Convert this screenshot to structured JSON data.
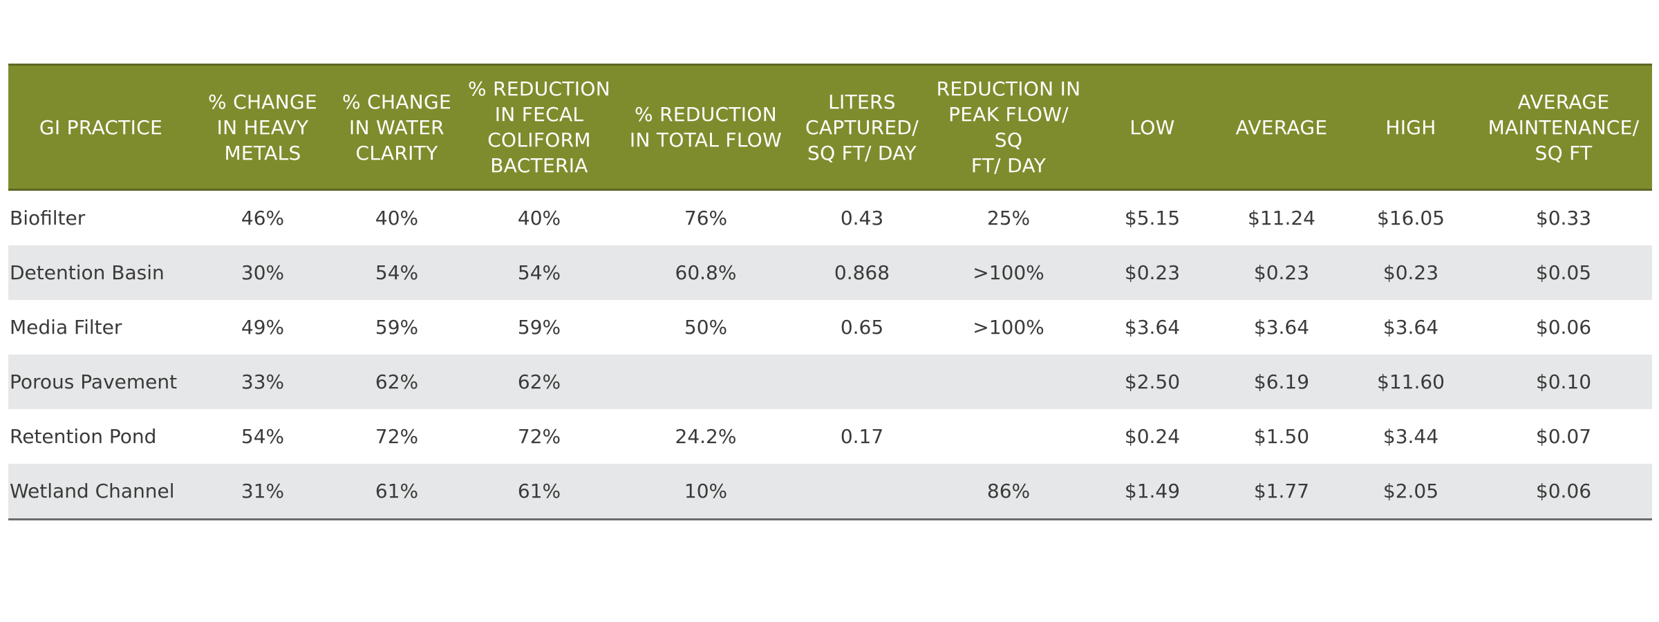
{
  "table": {
    "headers": [
      "GI PRACTICE",
      "% CHANGE\nIN HEAVY\nMETALS",
      "% CHANGE\nIN WATER\nCLARITY",
      "% REDUCTION\nIN FECAL\nCOLIFORM\nBACTERIA",
      "% REDUCTION\nIN TOTAL FLOW",
      "LITERS\nCAPTURED/\nSQ FT/ DAY",
      "REDUCTION IN\nPEAK FLOW/  SQ\nFT/ DAY",
      "LOW",
      "AVERAGE",
      "HIGH",
      "AVERAGE\nMAINTENANCE/\nSQ FT"
    ],
    "rows": [
      [
        "Biofilter",
        "46%",
        "40%",
        "40%",
        "76%",
        "0.43",
        "25%",
        "$5.15",
        "$11.24",
        "$16.05",
        "$0.33"
      ],
      [
        "Detention Basin",
        "30%",
        "54%",
        "54%",
        "60.8%",
        "0.868",
        ">100%",
        "$0.23",
        "$0.23",
        "$0.23",
        "$0.05"
      ],
      [
        "Media Filter",
        "49%",
        "59%",
        "59%",
        "50%",
        "0.65",
        ">100%",
        "$3.64",
        "$3.64",
        "$3.64",
        "$0.06"
      ],
      [
        "Porous Pavement",
        "33%",
        "62%",
        "62%",
        "",
        "",
        "",
        "$2.50",
        "$6.19",
        "$11.60",
        "$0.10"
      ],
      [
        "Retention Pond",
        "54%",
        "72%",
        "72%",
        "24.2%",
        "0.17",
        "",
        "$0.24",
        "$1.50",
        "$3.44",
        "$0.07"
      ],
      [
        "Wetland Channel",
        "31%",
        "61%",
        "61%",
        "10%",
        "",
        "86%",
        "$1.49",
        "$1.77",
        "$2.05",
        "$0.06"
      ]
    ]
  },
  "colors": {
    "header_background": "#7f8c2d",
    "header_text": "#ffffff",
    "row_stripe": "#e6e7e8",
    "body_text": "#3a3a3a"
  }
}
